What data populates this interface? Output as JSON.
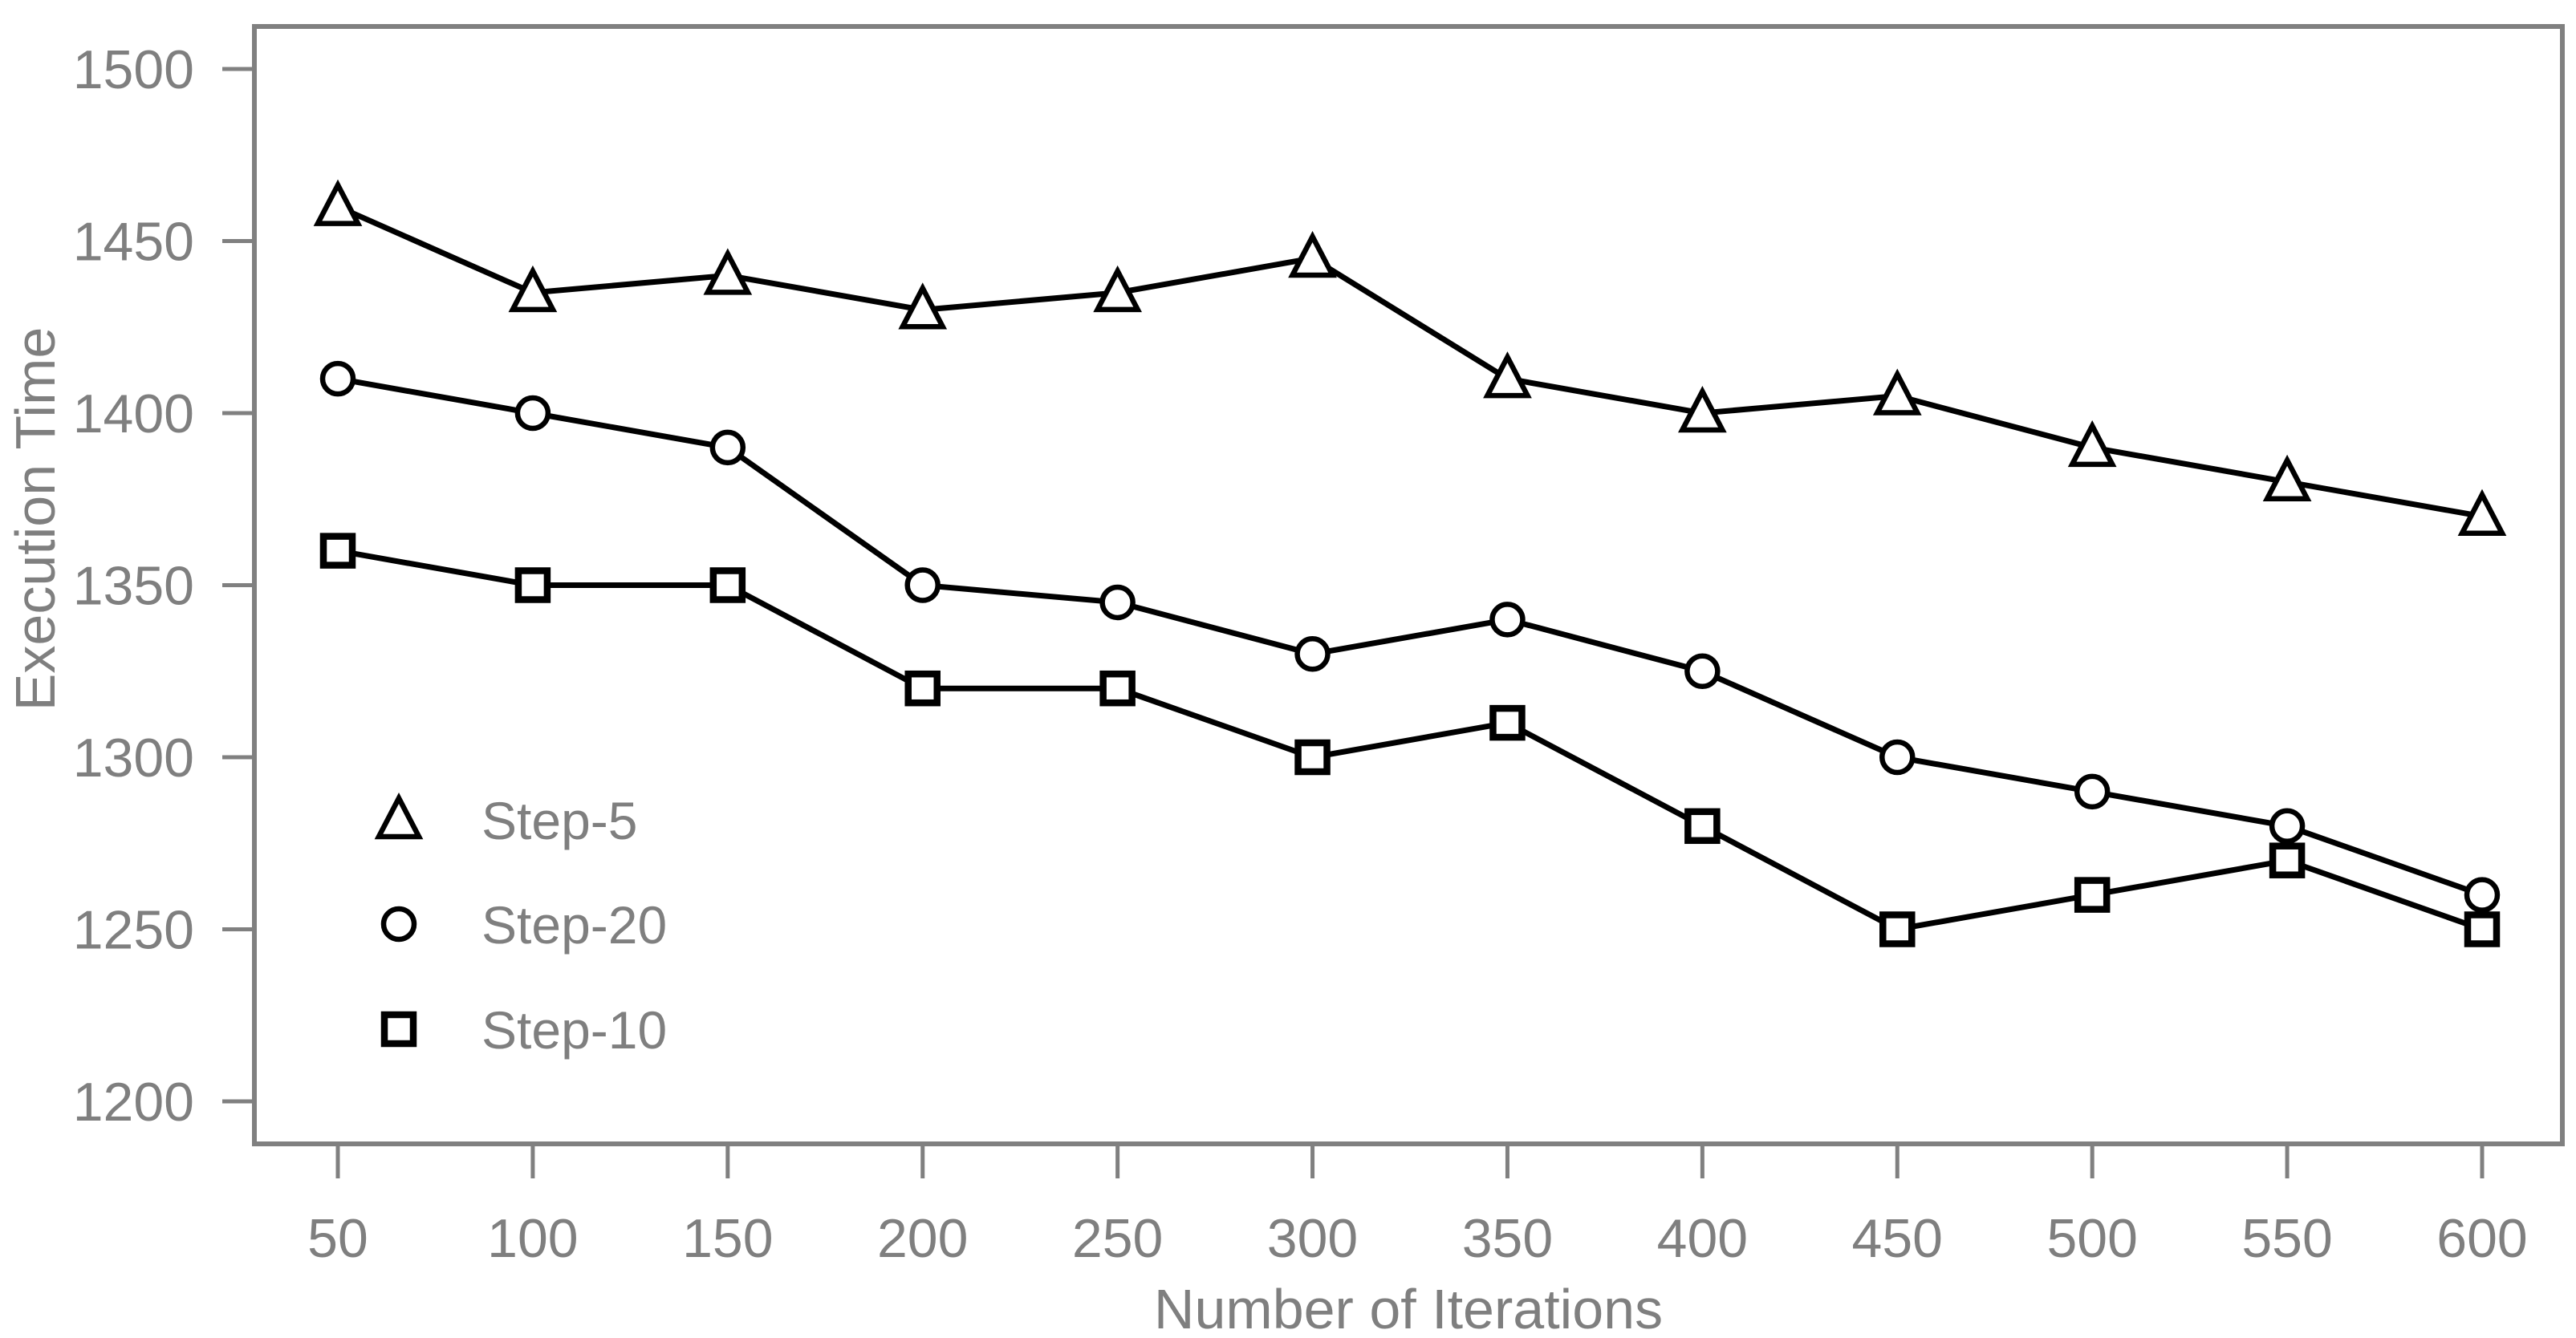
{
  "chart_data": {
    "type": "line",
    "title": "",
    "xlabel": "Number of Iterations",
    "ylabel": "Execution Time",
    "x": [
      50,
      100,
      150,
      200,
      250,
      300,
      350,
      400,
      450,
      500,
      550,
      600
    ],
    "x_ticks": [
      50,
      100,
      150,
      200,
      250,
      300,
      350,
      400,
      450,
      500,
      550,
      600
    ],
    "y_ticks": [
      1200,
      1250,
      1300,
      1350,
      1400,
      1450,
      1500
    ],
    "xlim": [
      50,
      600
    ],
    "ylim": [
      1200,
      1500
    ],
    "grid": false,
    "legend_position": "inside-left-lower",
    "series": [
      {
        "name": "Step-5",
        "marker": "triangle",
        "values": [
          1460,
          1435,
          1440,
          1430,
          1435,
          1445,
          1410,
          1400,
          1405,
          1390,
          1380,
          1370
        ]
      },
      {
        "name": "Step-20",
        "marker": "circle",
        "values": [
          1410,
          1400,
          1390,
          1350,
          1345,
          1330,
          1340,
          1325,
          1300,
          1290,
          1280,
          1260
        ]
      },
      {
        "name": "Step-10",
        "marker": "square",
        "values": [
          1360,
          1350,
          1350,
          1320,
          1320,
          1300,
          1310,
          1280,
          1250,
          1260,
          1270,
          1250
        ]
      }
    ],
    "legend": [
      {
        "label": "Step-5",
        "marker": "triangle"
      },
      {
        "label": "Step-20",
        "marker": "circle"
      },
      {
        "label": "Step-10",
        "marker": "square"
      }
    ]
  },
  "style": {
    "background": "#ffffff",
    "axis_color": "#808080",
    "text_color": "#7f7f7f",
    "series_color": "#000000",
    "marker_fill": "#ffffff"
  }
}
